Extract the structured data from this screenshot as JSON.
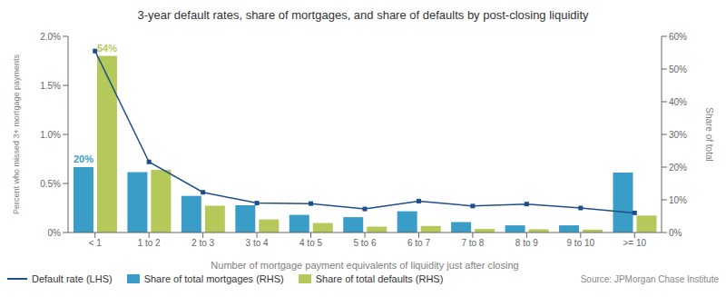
{
  "chart_data": {
    "type": "bar",
    "title": "3-year default rates, share of mortgages, and share of defaults by post-closing liquidity",
    "xlabel": "Number of mortgage payment equivalents of liquidity just after closing",
    "ylabel": "Percent who missed 3+ mortgage payments",
    "y2label": "Share of total",
    "categories": [
      "< 1",
      "1 to 2",
      "2 to 3",
      "3 to 4",
      "4 to 5",
      "5 to 6",
      "6 to 7",
      "7 to 8",
      "8 to 9",
      "9 to 10",
      ">= 10"
    ],
    "series": [
      {
        "name": "Default rate (LHS)",
        "type": "line",
        "color": "#1F4E8C",
        "marker": "square",
        "values": [
          0.0185,
          0.0072,
          0.0041,
          0.003,
          0.00295,
          0.0024,
          0.0032,
          0.0027,
          0.0029,
          0.0025,
          0.002
        ]
      },
      {
        "name": "Share of total mortgages (RHS)",
        "type": "bar",
        "axis": "y2",
        "color": "#3A9DC8",
        "values": [
          0.2,
          0.185,
          0.112,
          0.083,
          0.054,
          0.047,
          0.065,
          0.032,
          0.022,
          0.022,
          0.183
        ]
      },
      {
        "name": "Share of total defaults (RHS)",
        "type": "bar",
        "axis": "y2",
        "color": "#B5C95A",
        "values": [
          0.54,
          0.192,
          0.082,
          0.04,
          0.029,
          0.018,
          0.02,
          0.011,
          0.01,
          0.009,
          0.052
        ]
      }
    ],
    "ylim": [
      0,
      0.02
    ],
    "yticks": [
      {
        "value": 0,
        "label": "0%"
      },
      {
        "value": 0.005,
        "label": "0.5%"
      },
      {
        "value": 0.01,
        "label": "1.0%"
      },
      {
        "value": 0.015,
        "label": "1.5%"
      },
      {
        "value": 0.02,
        "label": "2.0%"
      }
    ],
    "y2lim": [
      0,
      0.6
    ],
    "y2ticks": [
      {
        "value": 0,
        "label": "0%"
      },
      {
        "value": 0.1,
        "label": "10%"
      },
      {
        "value": 0.2,
        "label": "20%"
      },
      {
        "value": 0.3,
        "label": "30%"
      },
      {
        "value": 0.4,
        "label": "40%"
      },
      {
        "value": 0.5,
        "label": "50%"
      },
      {
        "value": 0.6,
        "label": "60%"
      }
    ],
    "annotations": [
      {
        "text": "20%",
        "series": "Share of total mortgages (RHS)",
        "category": "< 1"
      },
      {
        "text": "54%",
        "series": "Share of total defaults (RHS)",
        "category": "< 1"
      }
    ],
    "source": "Source: JPMorgan Chase Institute",
    "grid": false,
    "legend": "bottom"
  }
}
